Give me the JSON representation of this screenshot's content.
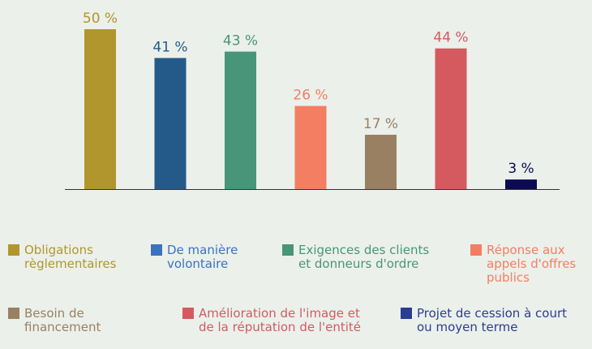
{
  "chart_data": {
    "type": "bar",
    "categories": [
      "Obligations règlementaires",
      "De manière volontaire",
      "Exigences des clients et donneurs d'ordre",
      "Réponse aux appels d'offres publics",
      "Besoin de financement",
      "Amélioration de l'image et de la réputation de l'entité",
      "Projet de cession à court ou moyen terme"
    ],
    "values": [
      50,
      41,
      43,
      26,
      17,
      44,
      3
    ],
    "value_labels": [
      "50 %",
      "41 %",
      "43 %",
      "26 %",
      "17 %",
      "44 %",
      "3 %"
    ],
    "colors": [
      "#b0962c",
      "#245a8a",
      "#48957a",
      "#f47e62",
      "#9a8062",
      "#d45a60",
      "#0c0a52"
    ],
    "legend_colors": [
      "#b0962c",
      "#3a72c0",
      "#48957a",
      "#f47e62",
      "#9a8062",
      "#d45a60",
      "#2a3d92"
    ]
  }
}
